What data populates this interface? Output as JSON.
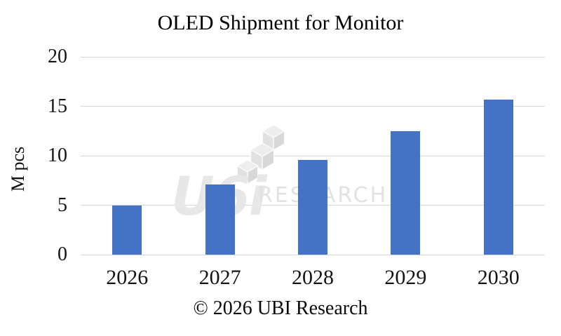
{
  "chart_data": {
    "type": "bar",
    "title": "OLED Shipment for Monitor",
    "xlabel": "",
    "ylabel": "M pcs",
    "categories": [
      "2026",
      "2027",
      "2028",
      "2029",
      "2030"
    ],
    "values": [
      5.0,
      7.1,
      9.6,
      12.5,
      15.7
    ],
    "ylim": [
      0,
      20
    ],
    "yticks": [
      0,
      5,
      10,
      15,
      20
    ],
    "grid": true,
    "legend": false,
    "bar_color": "#4472c4",
    "gridline_color": "#d6d6d6"
  },
  "caption": "© 2026 UBI Research",
  "watermark": {
    "logo_letters": "U6i",
    "logo_text": "RESEARCH",
    "color": "#e3e3e3"
  }
}
